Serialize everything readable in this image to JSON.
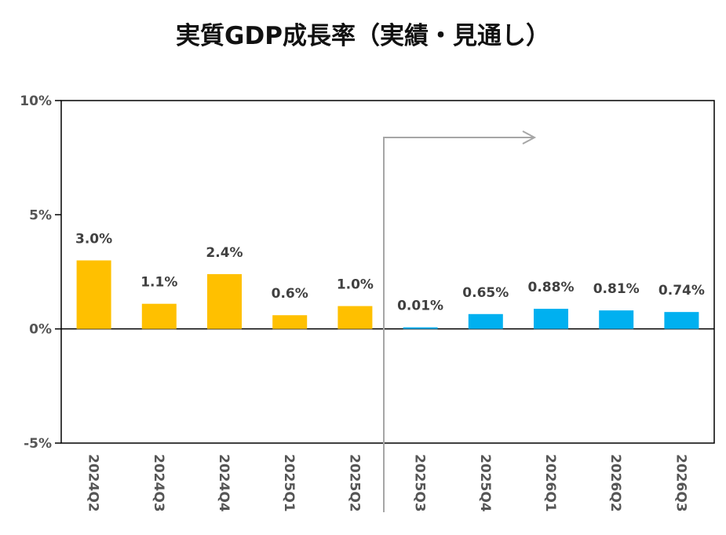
{
  "chart_data": {
    "type": "bar",
    "title": "実質GDP成長率（実績・見通し）",
    "categories": [
      "2024Q2",
      "2024Q3",
      "2024Q4",
      "2025Q1",
      "2025Q2",
      "2025Q3",
      "2025Q4",
      "2026Q1",
      "2026Q2",
      "2026Q3"
    ],
    "values": [
      3.0,
      1.1,
      2.4,
      0.6,
      1.0,
      0.01,
      0.65,
      0.88,
      0.81,
      0.74
    ],
    "data_labels": [
      "3.0%",
      "1.1%",
      "2.4%",
      "0.6%",
      "1.0%",
      "0.01%",
      "0.65%",
      "0.88%",
      "0.81%",
      "0.74%"
    ],
    "bar_kind": [
      "actual",
      "actual",
      "actual",
      "actual",
      "actual",
      "forecast",
      "forecast",
      "forecast",
      "forecast",
      "forecast"
    ],
    "colors": {
      "actual": "#FFC000",
      "forecast": "#00B0F0",
      "arrow": "#A6A6A6"
    },
    "ylim": [
      -5,
      10
    ],
    "yticks": [
      10,
      5,
      0,
      -5
    ],
    "ytick_labels": [
      "10%",
      "5%",
      "0%",
      "-5%"
    ],
    "xlabel": "",
    "ylabel": "",
    "grid": false,
    "legend": "none",
    "annotation": "arrow marking start of forecast period (from 2025Q3)"
  }
}
